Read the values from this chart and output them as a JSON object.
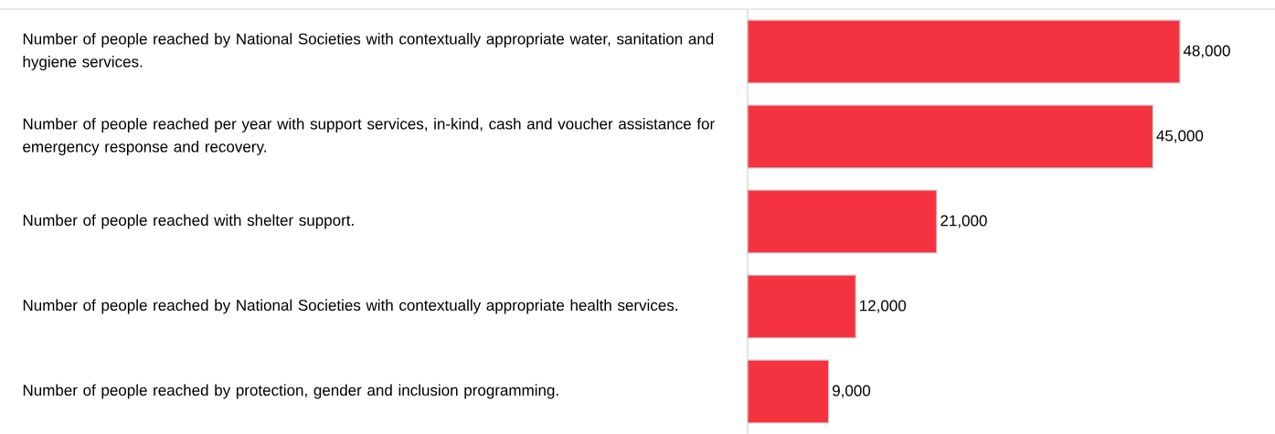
{
  "chart_data": {
    "type": "bar",
    "orientation": "horizontal",
    "categories": [
      "Number of people reached by National Societies with contextually appropriate water, sanitation and hygiene services.",
      "Number of people reached per year with support services, in-kind, cash and voucher assistance for emergency response and recovery.",
      "Number of people reached with shelter support.",
      "Number of people reached by National Societies with contextually appropriate health services.",
      "Number of people reached by protection, gender and inclusion programming."
    ],
    "values": [
      48000,
      45000,
      21000,
      12000,
      9000
    ],
    "value_labels": [
      "48,000",
      "45,000",
      "21,000",
      "12,000",
      "9,000"
    ],
    "color": "#f53340"
  }
}
